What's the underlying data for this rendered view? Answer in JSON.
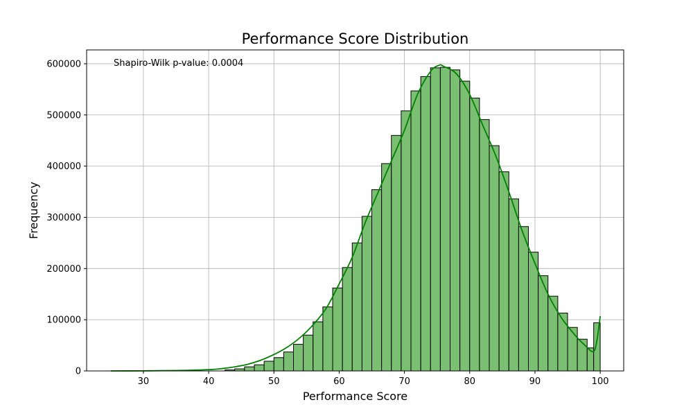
{
  "chart_data": {
    "type": "bar",
    "title": "Performance Score Distribution",
    "xlabel": "Performance Score",
    "ylabel": "Frequency",
    "annotation": "Shapiro-Wilk p-value: 0.0004",
    "xlim": [
      21.3,
      103.6
    ],
    "ylim": [
      0,
      600000
    ],
    "xticks": [
      30,
      40,
      50,
      60,
      70,
      80,
      90,
      100
    ],
    "yticks": [
      0,
      100000,
      200000,
      300000,
      400000,
      500000,
      600000
    ],
    "grid": true,
    "bar_color": "#7bbf73",
    "edge_color": "#000000",
    "kde_color": "#008000",
    "bins": [
      {
        "x0": 42.5,
        "x1": 44.0,
        "value": 2000
      },
      {
        "x0": 44.0,
        "x1": 45.5,
        "value": 4000
      },
      {
        "x0": 45.5,
        "x1": 47.0,
        "value": 8000
      },
      {
        "x0": 47.0,
        "x1": 48.5,
        "value": 12000
      },
      {
        "x0": 48.5,
        "x1": 50.0,
        "value": 19000
      },
      {
        "x0": 50.0,
        "x1": 51.5,
        "value": 26000
      },
      {
        "x0": 51.5,
        "x1": 53.0,
        "value": 37000
      },
      {
        "x0": 53.0,
        "x1": 54.5,
        "value": 52000
      },
      {
        "x0": 54.5,
        "x1": 56.0,
        "value": 70000
      },
      {
        "x0": 56.0,
        "x1": 57.5,
        "value": 96000
      },
      {
        "x0": 57.5,
        "x1": 59.0,
        "value": 125000
      },
      {
        "x0": 59.0,
        "x1": 60.5,
        "value": 162000
      },
      {
        "x0": 60.5,
        "x1": 62.0,
        "value": 202000
      },
      {
        "x0": 62.0,
        "x1": 63.5,
        "value": 250000
      },
      {
        "x0": 63.5,
        "x1": 65.0,
        "value": 302000
      },
      {
        "x0": 65.0,
        "x1": 66.5,
        "value": 354000
      },
      {
        "x0": 66.5,
        "x1": 68.0,
        "value": 405000
      },
      {
        "x0": 68.0,
        "x1": 69.5,
        "value": 460000
      },
      {
        "x0": 69.5,
        "x1": 71.0,
        "value": 508000
      },
      {
        "x0": 71.0,
        "x1": 72.5,
        "value": 547000
      },
      {
        "x0": 72.5,
        "x1": 74.0,
        "value": 575000
      },
      {
        "x0": 74.0,
        "x1": 75.5,
        "value": 592000
      },
      {
        "x0": 75.5,
        "x1": 77.0,
        "value": 593000
      },
      {
        "x0": 77.0,
        "x1": 78.5,
        "value": 588000
      },
      {
        "x0": 78.5,
        "x1": 80.0,
        "value": 566000
      },
      {
        "x0": 80.0,
        "x1": 81.5,
        "value": 533000
      },
      {
        "x0": 81.5,
        "x1": 83.0,
        "value": 491000
      },
      {
        "x0": 83.0,
        "x1": 84.5,
        "value": 440000
      },
      {
        "x0": 84.5,
        "x1": 86.0,
        "value": 389000
      },
      {
        "x0": 86.0,
        "x1": 87.5,
        "value": 336000
      },
      {
        "x0": 87.5,
        "x1": 89.0,
        "value": 282000
      },
      {
        "x0": 89.0,
        "x1": 90.5,
        "value": 232000
      },
      {
        "x0": 90.5,
        "x1": 92.0,
        "value": 186000
      },
      {
        "x0": 92.0,
        "x1": 93.5,
        "value": 146000
      },
      {
        "x0": 93.5,
        "x1": 95.0,
        "value": 113000
      },
      {
        "x0": 95.0,
        "x1": 96.5,
        "value": 85000
      },
      {
        "x0": 96.5,
        "x1": 98.0,
        "value": 62000
      },
      {
        "x0": 98.0,
        "x1": 99.0,
        "value": 45000
      },
      {
        "x0": 99.0,
        "x1": 100.0,
        "value": 94000
      }
    ],
    "kde": {
      "x": [
        25,
        30,
        35,
        40,
        42,
        44,
        46,
        48,
        50,
        52,
        54,
        56,
        58,
        60,
        62,
        64,
        66,
        68,
        70,
        72,
        74,
        75.3,
        76,
        78,
        80,
        82,
        84,
        86,
        88,
        90,
        92,
        94,
        96,
        97,
        98,
        98.7,
        99.2,
        99.6,
        100
      ],
      "y": [
        0,
        200,
        800,
        2500,
        4500,
        8000,
        13000,
        21000,
        32000,
        46000,
        65000,
        90000,
        122000,
        170000,
        222000,
        290000,
        350000,
        410000,
        470000,
        540000,
        585000,
        597000,
        595000,
        580000,
        540000,
        480000,
        420000,
        350000,
        275000,
        210000,
        150000,
        105000,
        72000,
        58000,
        46000,
        38000,
        42000,
        68000,
        107000
      ]
    }
  }
}
